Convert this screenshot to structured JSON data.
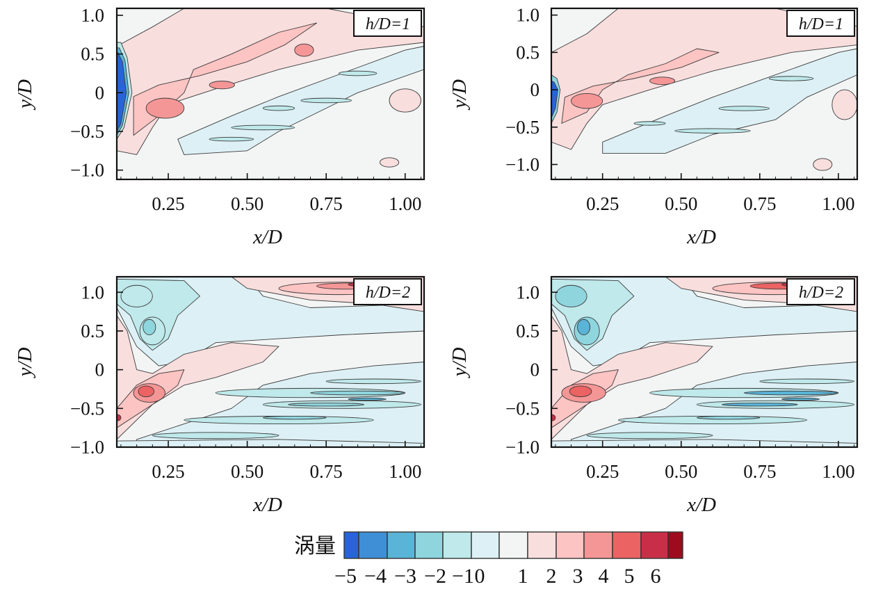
{
  "chart_data": {
    "type": "heatmap",
    "subtype": "filled-contour",
    "colorbar": {
      "title": "涡量",
      "tick_labels": [
        "−5",
        "−4",
        "−3",
        "−2",
        "−1",
        "0",
        "1",
        "2",
        "3",
        "4",
        "5",
        "6"
      ],
      "colors": [
        "#2a63d8",
        "#3f8fd6",
        "#5ab4d8",
        "#8fd5de",
        "#bfe9eb",
        "#ddf0f5",
        "#f3f5f5",
        "#f9dede",
        "#fcc4c2",
        "#f59696",
        "#ec6363",
        "#c92e48",
        "#9e0b1e"
      ]
    },
    "panels": [
      {
        "label": "h/D=1",
        "xlabel": "x/D",
        "ylabel": "y/D",
        "xlim": [
          0.087,
          1.06
        ],
        "ylim": [
          -1.12,
          1.09
        ],
        "xticks": [
          0.25,
          0.5,
          0.75,
          1.0
        ],
        "xtick_labels": [
          "0.25",
          "0.50",
          "0.75",
          "1.00"
        ],
        "yticks": [
          1.0,
          0.5,
          0,
          -0.5,
          -1.0
        ],
        "ytick_labels": [
          "1.0",
          "0.5",
          "0",
          "−0.5",
          "−1.0"
        ]
      },
      {
        "label": "h/D=1",
        "xlabel": "x/D",
        "ylabel": "y/D",
        "xlim": [
          0.087,
          1.06
        ],
        "ylim": [
          -1.2,
          1.09
        ],
        "xticks": [
          0.25,
          0.5,
          0.75,
          1.0
        ],
        "xtick_labels": [
          "0.25",
          "0.50",
          "0.75",
          "1.00"
        ],
        "yticks": [
          1.0,
          0.5,
          0,
          -0.5,
          -1.0
        ],
        "ytick_labels": [
          "1.0",
          "0.5",
          "0",
          "−0.5",
          "−1.0"
        ]
      },
      {
        "label": "h/D=2",
        "xlabel": "x/D",
        "ylabel": "y/D",
        "xlim": [
          0.087,
          1.06
        ],
        "ylim": [
          -1.0,
          1.2
        ],
        "xticks": [
          0.25,
          0.5,
          0.75,
          1.0
        ],
        "xtick_labels": [
          "0.25",
          "0.50",
          "0.75",
          "1.00"
        ],
        "yticks": [
          1.0,
          0.5,
          0,
          -0.5,
          -1.0
        ],
        "ytick_labels": [
          "1.0",
          "0.5",
          "0",
          "−0.5",
          "−1.0"
        ]
      },
      {
        "label": "h/D=2",
        "xlabel": "x/D",
        "ylabel": "y/D",
        "xlim": [
          0.087,
          1.06
        ],
        "ylim": [
          -1.0,
          1.2
        ],
        "xticks": [
          0.25,
          0.5,
          0.75,
          1.0
        ],
        "xtick_labels": [
          "0.25",
          "0.50",
          "0.75",
          "1.00"
        ],
        "yticks": [
          1.0,
          0.5,
          0,
          -0.5,
          -1.0
        ],
        "ytick_labels": [
          "1.0",
          "0.5",
          "0",
          "−0.5",
          "−1.0"
        ]
      }
    ]
  }
}
